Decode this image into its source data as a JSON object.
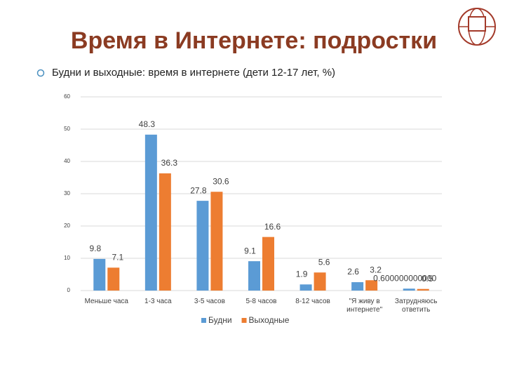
{
  "chart_data": {
    "type": "bar",
    "title": "Время в Интернете: подростки",
    "subtitle": "Будни и выходные: время в интернете (дети 12-17 лет, %)",
    "categories": [
      "Меньше часа",
      "1-3 часа",
      "3-5 часов",
      "5-8 часов",
      "8-12 часов",
      "\"Я живу в интернете\"",
      "Затрудняюсь ответить"
    ],
    "series": [
      {
        "name": "Будни",
        "color": "#5b9bd5",
        "values": [
          9.8,
          48.3,
          27.8,
          9.1,
          1.9,
          2.6,
          0.6
        ],
        "value_labels": [
          "9.8",
          "48.3",
          "27.8",
          "9.1",
          "1.9",
          "2.6",
          "0.600000000000"
        ]
      },
      {
        "name": "Выходные",
        "color": "#ed7d31",
        "values": [
          7.1,
          36.3,
          30.6,
          16.6,
          5.6,
          3.2,
          0.5
        ]
      }
    ],
    "ylim": [
      0,
      60
    ],
    "yticks": [
      0,
      10,
      20,
      30,
      40,
      50,
      60
    ],
    "grid": true,
    "legend": "bottom"
  }
}
